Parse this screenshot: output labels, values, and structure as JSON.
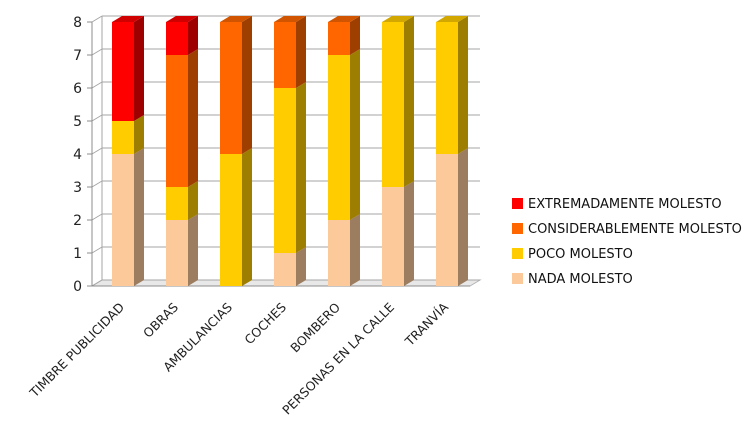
{
  "chart_data": {
    "type": "bar",
    "stacked": true,
    "title": "",
    "xlabel": "",
    "ylabel": "",
    "ylim": [
      0,
      8
    ],
    "yticks": [
      0,
      1,
      2,
      3,
      4,
      5,
      6,
      7,
      8
    ],
    "grid": true,
    "legend_position": "right",
    "categories": [
      "TIMBRE PUBLICIDAD",
      "OBRAS",
      "AMBULANCIAS",
      "COCHES",
      "BOMBERO",
      "PERSONAS EN LA CALLE",
      "TRANVÍA"
    ],
    "series": [
      {
        "name": "NADA MOLESTO",
        "color": "#FCC99B",
        "values": [
          4,
          2,
          0,
          1,
          2,
          3,
          4
        ]
      },
      {
        "name": "POCO MOLESTO",
        "color": "#FFCC00",
        "values": [
          1,
          1,
          4,
          5,
          5,
          5,
          4
        ]
      },
      {
        "name": "CONSIDERABLEMENTE MOLESTO",
        "color": "#FF6600",
        "values": [
          0,
          4,
          4,
          2,
          1,
          0,
          0
        ]
      },
      {
        "name": "EXTREMADAMENTE MOLESTO",
        "color": "#FF0000",
        "values": [
          3,
          1,
          0,
          0,
          0,
          0,
          0
        ]
      }
    ],
    "legend_order": [
      "EXTREMADAMENTE MOLESTO",
      "CONSIDERABLEMENTE MOLESTO",
      "POCO MOLESTO",
      "NADA MOLESTO"
    ]
  }
}
